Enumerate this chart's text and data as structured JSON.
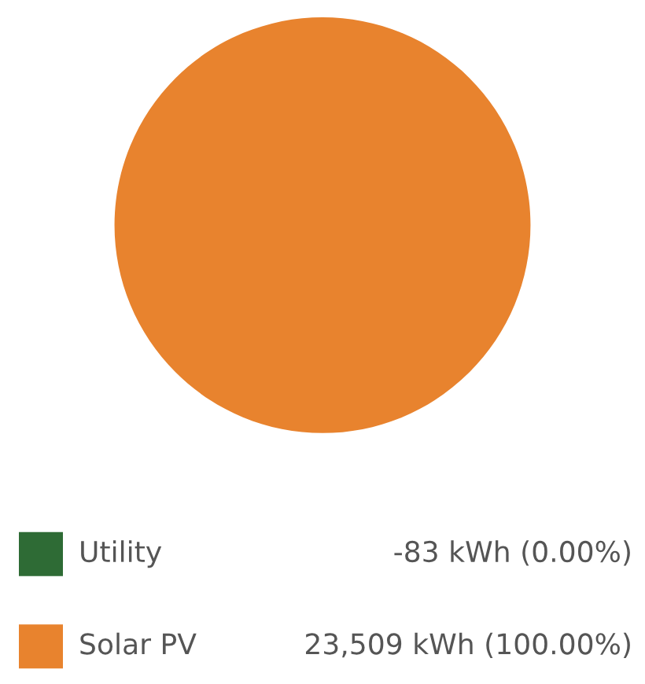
{
  "chart_data": {
    "type": "pie",
    "categories": [
      "Utility",
      "Solar PV"
    ],
    "values": [
      0.0,
      100.0
    ],
    "value_labels": [
      "-83 kWh (0.00%)",
      "23,509 kWh (100.00%)"
    ],
    "colors": [
      "#2e6b35",
      "#e8832e"
    ],
    "legend": "bottom"
  }
}
